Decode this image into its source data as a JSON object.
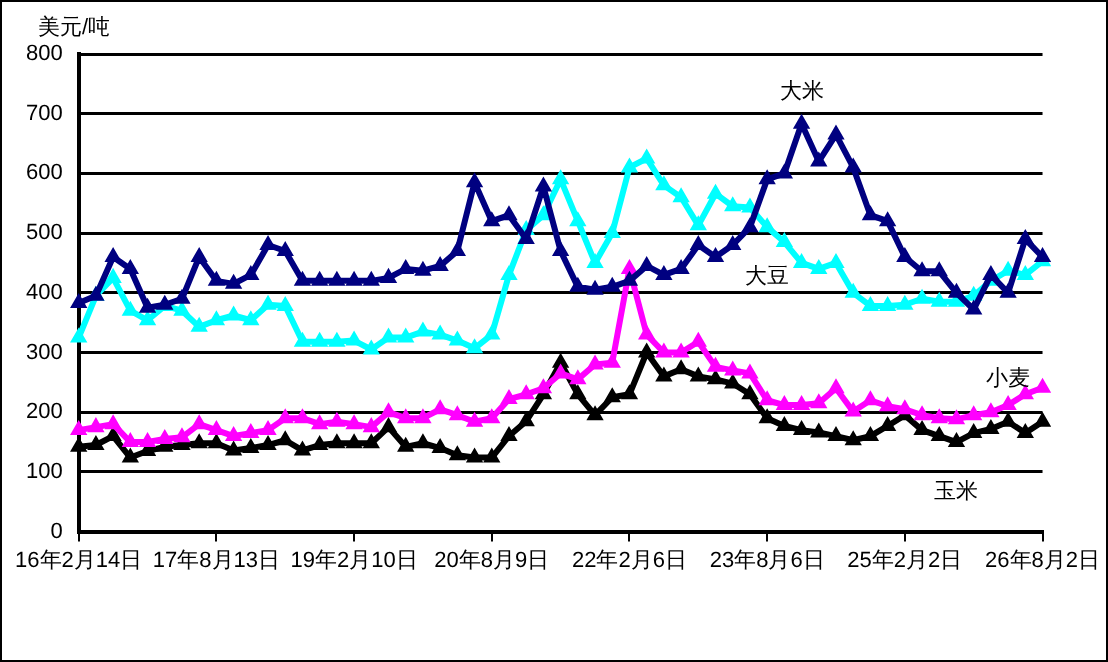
{
  "chart_data": {
    "type": "line",
    "ylabel": "美元/吨",
    "categories": [
      "16年2月14日",
      null,
      null,
      null,
      null,
      null,
      null,
      null,
      "17年8月13日",
      null,
      null,
      null,
      null,
      null,
      null,
      null,
      "19年2月10日",
      null,
      null,
      null,
      null,
      null,
      null,
      null,
      "20年8月9日",
      null,
      null,
      null,
      null,
      null,
      null,
      null,
      "22年2月6日",
      null,
      null,
      null,
      null,
      null,
      null,
      null,
      "23年8月6日",
      null,
      null,
      null,
      null,
      null,
      null,
      null,
      "25年2月2日",
      null,
      null,
      null,
      null,
      null,
      null,
      null,
      "26年8月2日"
    ],
    "series": [
      {
        "name": "大米",
        "color": "#000080",
        "values": [
          383,
          395,
          460,
          440,
          375,
          380,
          390,
          460,
          420,
          415,
          430,
          480,
          470,
          420,
          420,
          420,
          420,
          420,
          425,
          440,
          437,
          445,
          470,
          585,
          520,
          530,
          490,
          578,
          470,
          410,
          405,
          410,
          420,
          445,
          430,
          440,
          480,
          460,
          480,
          510,
          590,
          600,
          683,
          620,
          665,
          610,
          530,
          520,
          460,
          436,
          436,
          400,
          372,
          430,
          400,
          490,
          460
        ]
      },
      {
        "name": "大豆",
        "color": "#00ffff",
        "values": [
          325,
          395,
          425,
          370,
          354,
          378,
          370,
          343,
          354,
          362,
          354,
          380,
          378,
          318,
          318,
          318,
          320,
          305,
          325,
          325,
          335,
          330,
          320,
          307,
          330,
          430,
          505,
          530,
          590,
          520,
          450,
          500,
          610,
          625,
          580,
          560,
          513,
          566,
          545,
          543,
          510,
          485,
          450,
          440,
          450,
          400,
          378,
          378,
          380,
          390,
          385,
          385,
          395,
          420,
          437,
          430,
          453
        ]
      },
      {
        "name": "小麦",
        "color": "#ff00ff",
        "values": [
          170,
          175,
          180,
          150,
          150,
          155,
          158,
          180,
          170,
          160,
          165,
          170,
          190,
          190,
          180,
          184,
          180,
          175,
          200,
          190,
          190,
          205,
          195,
          184,
          190,
          222,
          230,
          240,
          265,
          255,
          280,
          283,
          440,
          330,
          300,
          300,
          318,
          276,
          270,
          265,
          220,
          212,
          212,
          215,
          240,
          201,
          220,
          210,
          205,
          195,
          190,
          188,
          195,
          200,
          212,
          230,
          241
        ]
      },
      {
        "name": "玉米",
        "color": "#000000",
        "values": [
          142,
          145,
          160,
          124,
          135,
          142,
          145,
          148,
          148,
          136,
          140,
          145,
          153,
          136,
          145,
          148,
          148,
          148,
          175,
          142,
          148,
          140,
          128,
          124,
          124,
          160,
          185,
          230,
          283,
          230,
          195,
          225,
          230,
          300,
          260,
          272,
          260,
          255,
          248,
          230,
          190,
          177,
          170,
          166,
          160,
          153,
          160,
          177,
          195,
          170,
          160,
          150,
          165,
          172,
          184,
          165,
          184
        ]
      }
    ],
    "ylim": [
      0,
      800
    ],
    "yticks": [
      0,
      100,
      200,
      300,
      400,
      500,
      600,
      700,
      800
    ],
    "grid": "y",
    "legend": false,
    "marker": "triangle",
    "line_style": "solid"
  }
}
